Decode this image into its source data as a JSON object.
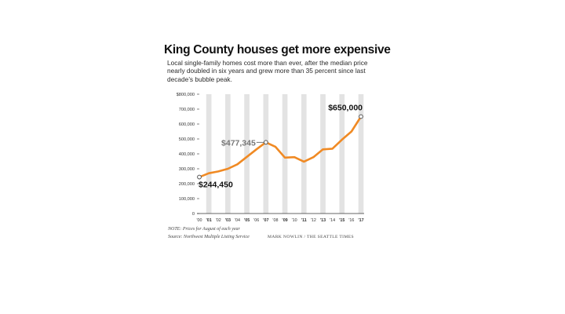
{
  "title": "King County houses get more expensive",
  "subtitle": "Local single-family homes cost more than ever, after the median price nearly doubled in six years and grew more than 35 percent since last decade’s bubble peak.",
  "note": "NOTE: Prices for August of each year",
  "source": "Source: Northwest Multiple Listing Service",
  "credit": "MARK NOWLIN / THE SEATTLE TIMES",
  "colors": {
    "line": "#f08a24",
    "band": "#e3e3e3",
    "text": "#111111",
    "axis": "#333333"
  },
  "chart_data": {
    "type": "line",
    "x": [
      "'00",
      "'01",
      "'02",
      "'03",
      "'04",
      "'05",
      "'06",
      "'07",
      "'08",
      "'09",
      "'10",
      "'11",
      "'12",
      "'13",
      "'14",
      "'15",
      "'16",
      "'17"
    ],
    "x_bold": [
      false,
      true,
      false,
      true,
      false,
      true,
      false,
      true,
      false,
      true,
      false,
      true,
      false,
      true,
      false,
      true,
      false,
      true
    ],
    "values": [
      244450,
      270000,
      282000,
      300000,
      330000,
      380000,
      430000,
      477345,
      448000,
      375000,
      378000,
      348000,
      378000,
      430000,
      435000,
      495000,
      550000,
      650000
    ],
    "ylim": [
      0,
      800000
    ],
    "yticks": [
      0,
      100000,
      200000,
      300000,
      400000,
      500000,
      600000,
      700000,
      800000
    ],
    "ytick_labels": [
      "0",
      "100,000",
      "200,000",
      "300,000",
      "400,000",
      "500,000",
      "600,000",
      "700,000",
      "$800,000"
    ],
    "alternating_bands": true,
    "annotations": [
      {
        "index": 0,
        "label": "$244,450",
        "color": "#111111"
      },
      {
        "index": 7,
        "label": "$477,345",
        "color": "#777777"
      },
      {
        "index": 17,
        "label": "$650,000",
        "color": "#111111"
      }
    ]
  }
}
